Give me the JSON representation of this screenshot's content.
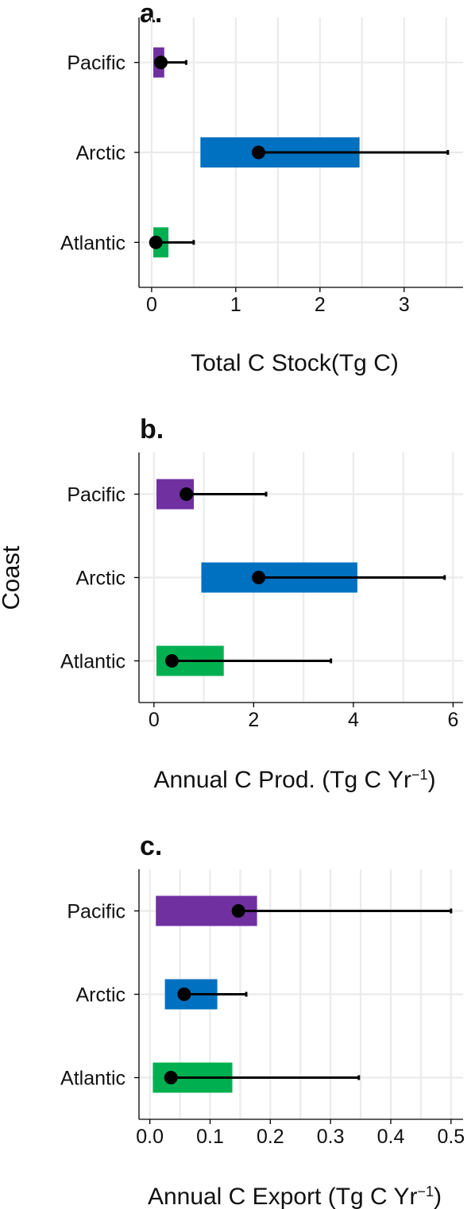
{
  "figure": {
    "shared_ylabel": "Coast",
    "colors": {
      "Pacific": "#7030A0",
      "Arctic": "#0070C0",
      "Atlantic": "#00B050",
      "grid": "#EBEBEB",
      "axis": "#000000",
      "point": "#000000"
    }
  },
  "chart_data": [
    {
      "panel_label": "a.",
      "type": "bar",
      "orientation": "horizontal",
      "subtype": "floating range bars with point estimate and error bar",
      "categories": [
        "Pacific",
        "Arctic",
        "Atlantic"
      ],
      "bar_low": [
        0.02,
        0.58,
        0.02
      ],
      "bar_high": [
        0.15,
        2.47,
        0.2
      ],
      "point": [
        0.11,
        1.27,
        0.05
      ],
      "error_high": [
        0.41,
        3.52,
        0.5
      ],
      "xlabel": "Total C Stock(Tg C)",
      "xlim": [
        -0.15,
        3.7
      ],
      "xticks": [
        0,
        1,
        2,
        3
      ],
      "xtick_labels": [
        "0",
        "1",
        "2",
        "3"
      ],
      "grid": true
    },
    {
      "panel_label": "b.",
      "type": "bar",
      "orientation": "horizontal",
      "subtype": "floating range bars with point estimate and error bar",
      "categories": [
        "Pacific",
        "Arctic",
        "Atlantic"
      ],
      "bar_low": [
        0.05,
        0.95,
        0.05
      ],
      "bar_high": [
        0.8,
        4.08,
        1.4
      ],
      "point": [
        0.65,
        2.1,
        0.36
      ],
      "error_high": [
        2.25,
        5.83,
        3.55
      ],
      "xlabel": "Annual C Prod. (Tg C Yr",
      "xlabel_superscript": "−1",
      "xlabel_suffix": ")",
      "xlim": [
        -0.3,
        6.2
      ],
      "xticks": [
        0,
        2,
        4,
        6
      ],
      "xtick_labels": [
        "0",
        "2",
        "4",
        "6"
      ],
      "grid": true
    },
    {
      "panel_label": "c.",
      "type": "bar",
      "orientation": "horizontal",
      "subtype": "floating range bars with point estimate and error bar",
      "categories": [
        "Pacific",
        "Arctic",
        "Atlantic"
      ],
      "bar_low": [
        0.01,
        0.025,
        0.005
      ],
      "bar_high": [
        0.178,
        0.112,
        0.137
      ],
      "point": [
        0.147,
        0.057,
        0.035
      ],
      "error_high": [
        0.5,
        0.16,
        0.347
      ],
      "xlabel": "Annual C Export (Tg C Yr",
      "xlabel_superscript": "−1",
      "xlabel_suffix": ")",
      "xlim": [
        -0.018,
        0.52
      ],
      "xticks": [
        0.0,
        0.1,
        0.2,
        0.3,
        0.4,
        0.5
      ],
      "xtick_labels": [
        "0.0",
        "0.1",
        "0.2",
        "0.3",
        "0.4",
        "0.5"
      ],
      "grid": true
    }
  ]
}
